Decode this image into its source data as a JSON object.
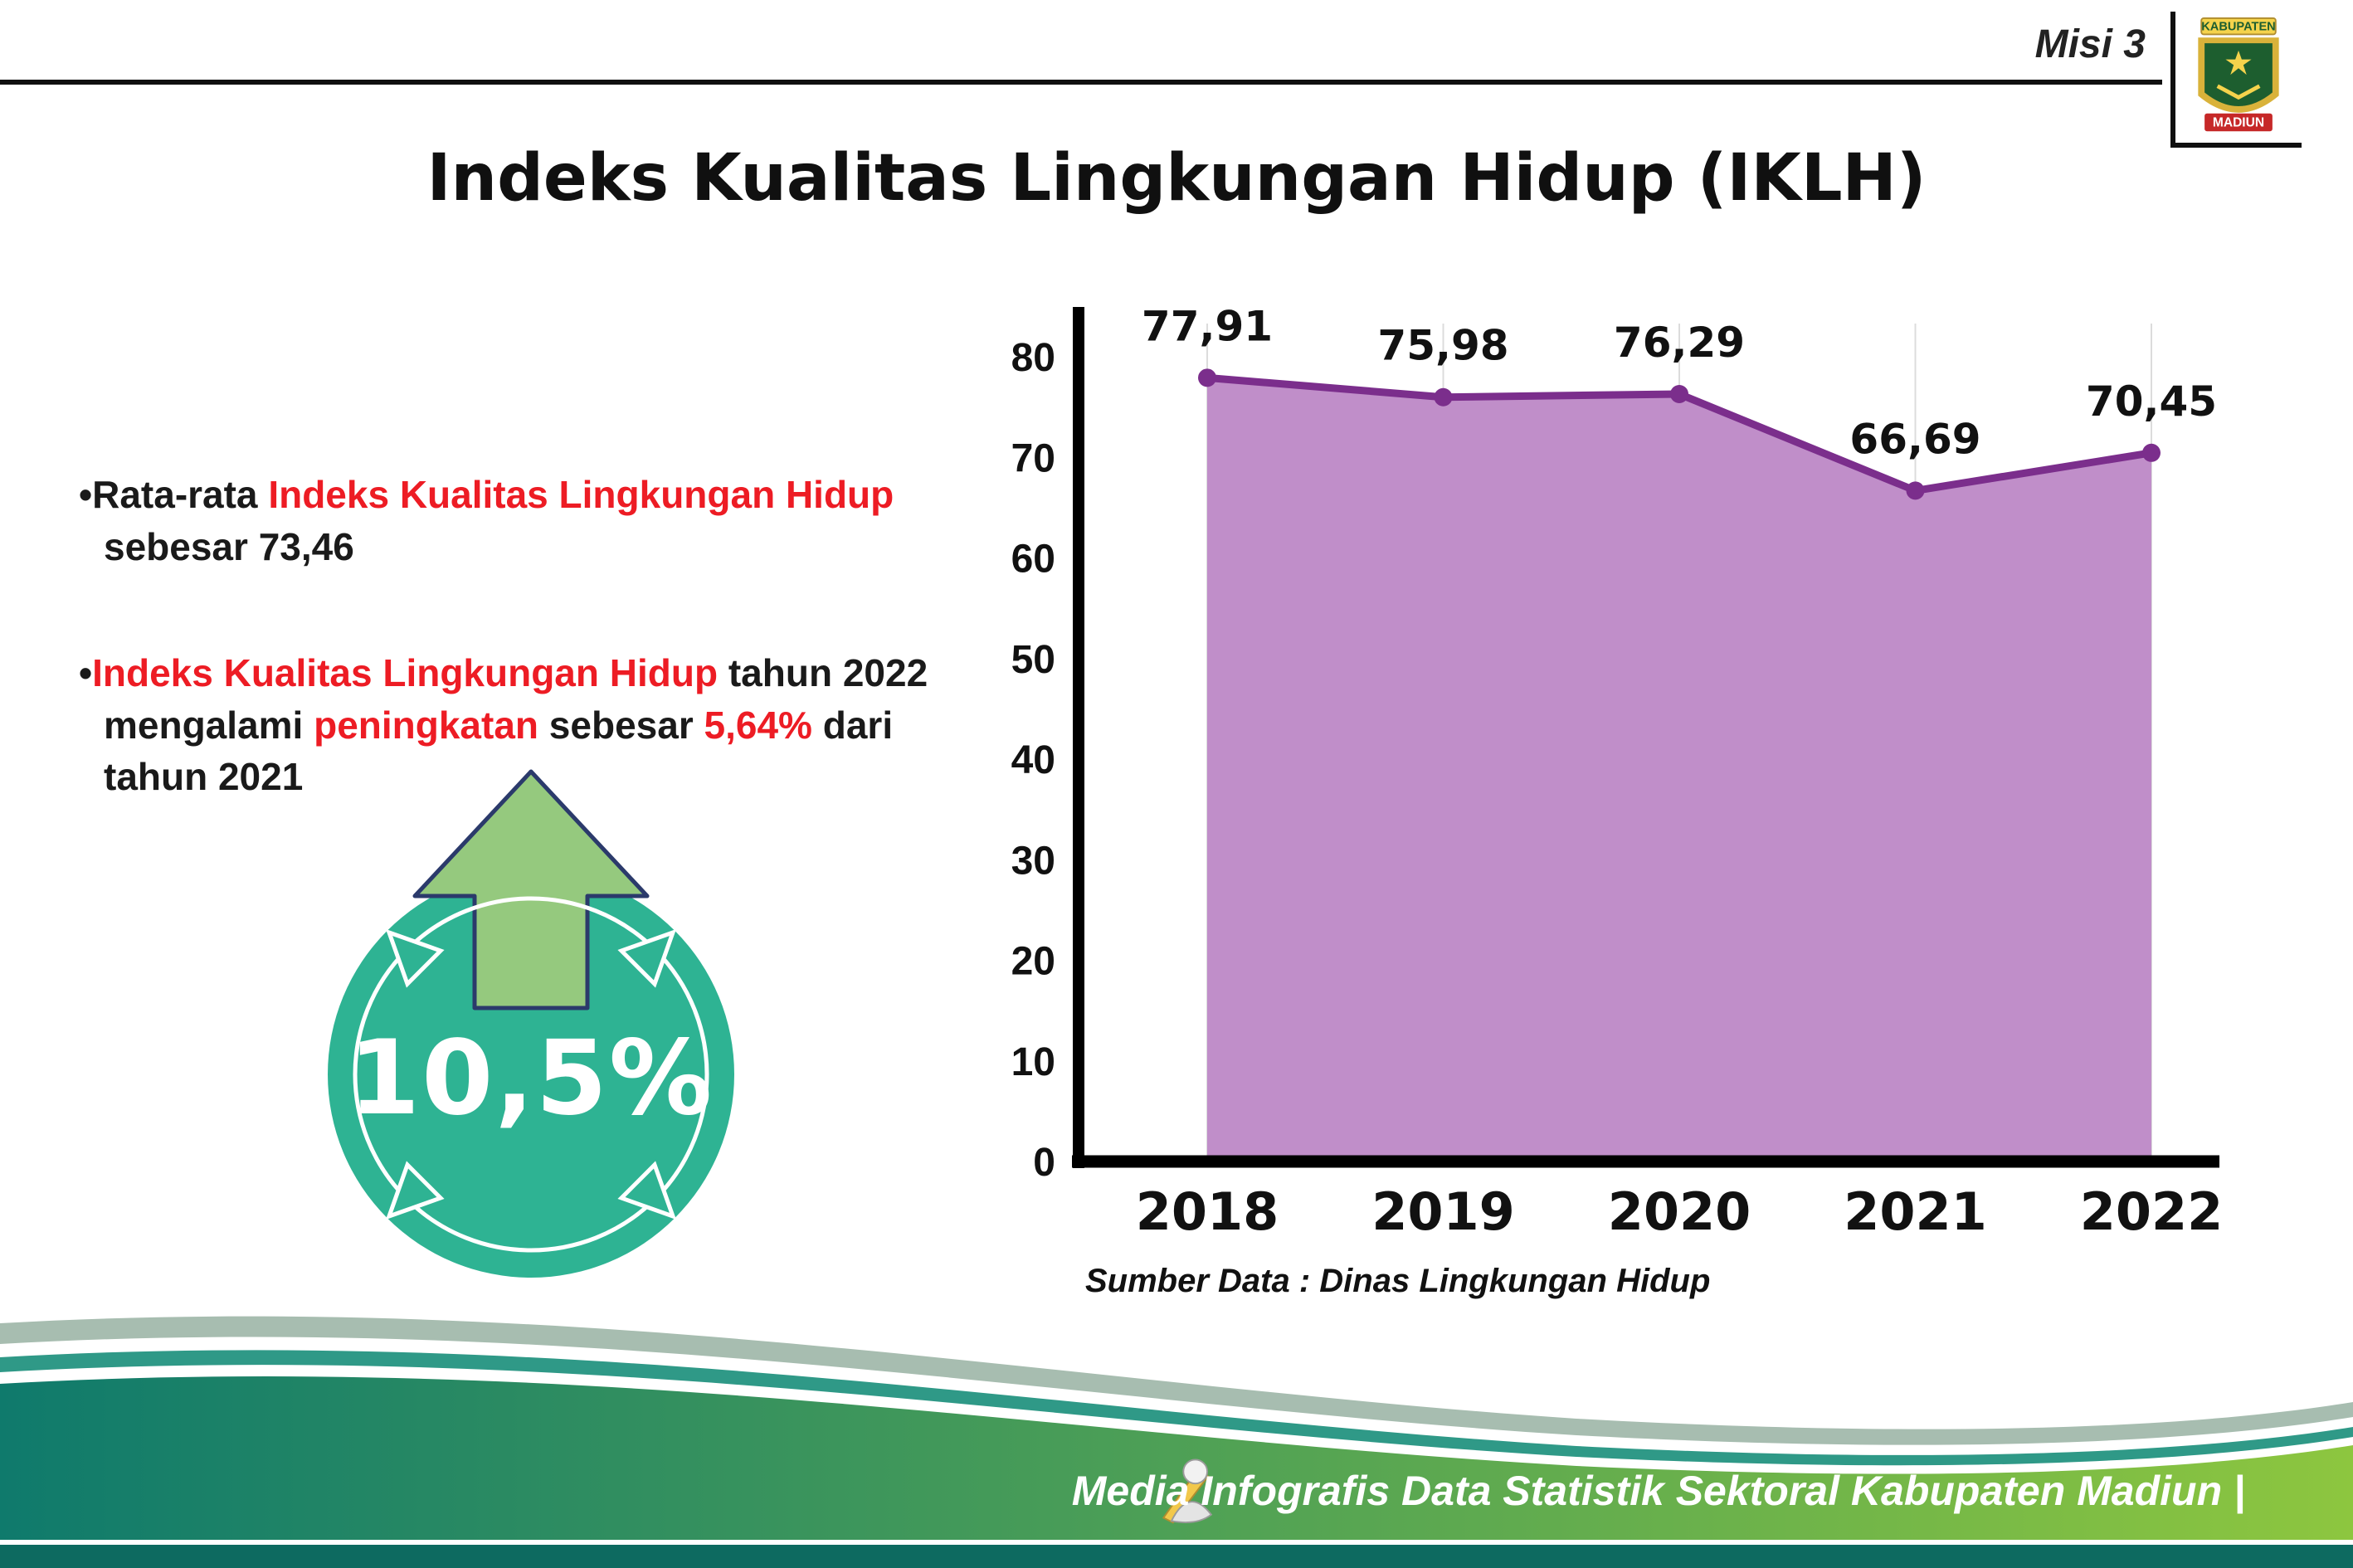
{
  "header": {
    "misi": "Misi 3",
    "title": "Indeks Kualitas Lingkungan Hidup (IKLH)"
  },
  "logo": {
    "region_label": "KABUPATEN",
    "name_label": "MADIUN"
  },
  "bullets": {
    "b1": {
      "marker": "•",
      "t0": "Rata-rata ",
      "r1": "Indeks Kualitas Lingkungan Hidup",
      "t1": " sebesar 73,46"
    },
    "b2": {
      "marker": "•",
      "r1": "Indeks Kualitas Lingkungan Hidup",
      "t1": " tahun 2022 mengalami ",
      "r2": "peningkatan",
      "t2": " sebesar ",
      "r3": "5,64%",
      "t3": " dari tahun 2021"
    }
  },
  "badge": {
    "value": "10,5%"
  },
  "chart_data": {
    "type": "area",
    "title": "",
    "xlabel": "",
    "ylabel": "",
    "categories": [
      "2018",
      "2019",
      "2020",
      "2021",
      "2022"
    ],
    "values": [
      77.91,
      75.98,
      76.29,
      66.69,
      70.45
    ],
    "value_labels": [
      "77,91",
      "75,98",
      "76,29",
      "66,69",
      "70,45"
    ],
    "ylim": [
      0,
      80
    ],
    "yticks": [
      0,
      10,
      20,
      30,
      40,
      50,
      60,
      70,
      80
    ],
    "grid": "vertical-light",
    "legend": "none",
    "line_color": "#7b2e8c",
    "fill_color": "#c08ec9",
    "point_color": "#7b2e8c",
    "source_note": "Sumber Data : Dinas Lingkungan Hidup"
  },
  "footer": {
    "credit": "Media Infografis Data Statistik Sektoral Kabupaten Madiun |"
  },
  "colors": {
    "accent_red": "#ed1c24",
    "badge_teal": "#2eb393",
    "arrow_green": "#95c97e",
    "footer_dark_teal": "#0d6a60",
    "footer_gradient_start": "#0f7a6c",
    "footer_gradient_end": "#8dc63f"
  }
}
